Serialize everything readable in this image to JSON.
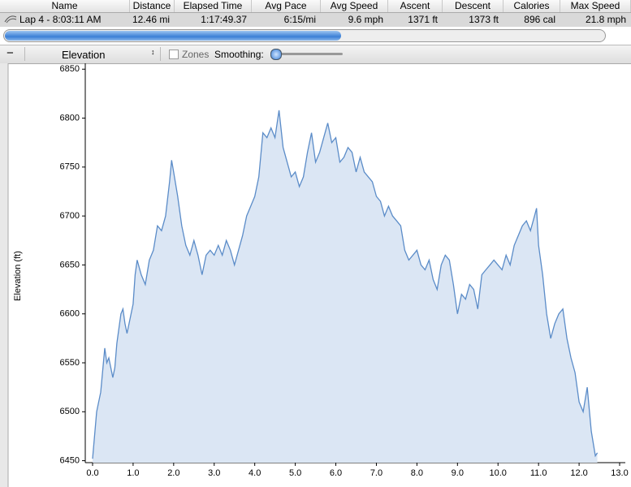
{
  "table": {
    "columns": [
      "Name",
      "Distance",
      "Elapsed Time",
      "Avg Pace",
      "Avg Speed",
      "Ascent",
      "Descent",
      "Calories",
      "Max Speed"
    ],
    "row": [
      "Lap 4 - 8:03:11 AM",
      "12.46 mi",
      "1:17:49.37",
      "6:15/mi",
      "9.6 mph",
      "1371 ft",
      "1373 ft",
      "896 cal",
      "21.8 mph"
    ]
  },
  "toolbar": {
    "view": "Elevation",
    "zones": "Zones",
    "smoothing": "Smoothing:"
  },
  "chart_data": {
    "type": "area",
    "ylabel": "Elevation (ft)",
    "color": "#5b8cc8",
    "fill": "#dbe6f4",
    "xlim": [
      -0.18,
      13.14
    ],
    "ylim": [
      6448,
      6856
    ],
    "xticks": [
      {
        "value": 0,
        "label": "0.0"
      },
      {
        "value": 1,
        "label": "1.0"
      },
      {
        "value": 2,
        "label": "2.0"
      },
      {
        "value": 3,
        "label": "3.0"
      },
      {
        "value": 4,
        "label": "4.0"
      },
      {
        "value": 5,
        "label": "5.0"
      },
      {
        "value": 6,
        "label": "6.0"
      },
      {
        "value": 7,
        "label": "7.0"
      },
      {
        "value": 8,
        "label": "8.0"
      },
      {
        "value": 9,
        "label": "9.0"
      },
      {
        "value": 10,
        "label": "10.0"
      },
      {
        "value": 11,
        "label": "11.0"
      },
      {
        "value": 12,
        "label": "12.0"
      },
      {
        "value": 13,
        "label": "13.0"
      }
    ],
    "yticks": [
      6450,
      6500,
      6550,
      6600,
      6650,
      6700,
      6750,
      6800,
      6850
    ],
    "x": [
      0,
      0.1,
      0.2,
      0.3,
      0.35,
      0.4,
      0.5,
      0.55,
      0.6,
      0.7,
      0.75,
      0.8,
      0.85,
      0.9,
      1,
      1.05,
      1.1,
      1.2,
      1.3,
      1.4,
      1.5,
      1.6,
      1.7,
      1.8,
      1.9,
      1.95,
      2,
      2.1,
      2.2,
      2.3,
      2.4,
      2.5,
      2.6,
      2.7,
      2.8,
      2.9,
      3,
      3.1,
      3.2,
      3.3,
      3.4,
      3.5,
      3.6,
      3.7,
      3.8,
      3.9,
      4,
      4.1,
      4.2,
      4.3,
      4.4,
      4.5,
      4.6,
      4.7,
      4.8,
      4.9,
      5,
      5.1,
      5.2,
      5.3,
      5.4,
      5.5,
      5.6,
      5.7,
      5.8,
      5.9,
      6,
      6.1,
      6.2,
      6.3,
      6.4,
      6.5,
      6.6,
      6.7,
      6.8,
      6.9,
      7,
      7.1,
      7.2,
      7.3,
      7.4,
      7.5,
      7.6,
      7.7,
      7.8,
      7.9,
      8,
      8.1,
      8.2,
      8.3,
      8.4,
      8.5,
      8.6,
      8.7,
      8.8,
      8.9,
      9,
      9.1,
      9.2,
      9.3,
      9.4,
      9.5,
      9.6,
      9.7,
      9.8,
      9.9,
      10,
      10.1,
      10.2,
      10.3,
      10.4,
      10.5,
      10.6,
      10.7,
      10.8,
      10.9,
      10.95,
      11,
      11.1,
      11.2,
      11.3,
      11.4,
      11.5,
      11.6,
      11.7,
      11.8,
      11.9,
      12,
      12.1,
      12.2,
      12.3,
      12.4,
      12.45
    ],
    "values": [
      6452,
      6500,
      6520,
      6565,
      6550,
      6555,
      6535,
      6545,
      6570,
      6600,
      6605,
      6590,
      6580,
      6590,
      6610,
      6640,
      6655,
      6640,
      6630,
      6655,
      6665,
      6690,
      6685,
      6700,
      6735,
      6757,
      6745,
      6720,
      6690,
      6670,
      6660,
      6675,
      6660,
      6640,
      6660,
      6665,
      6660,
      6670,
      6660,
      6675,
      6665,
      6650,
      6665,
      6680,
      6700,
      6710,
      6720,
      6740,
      6785,
      6780,
      6790,
      6780,
      6808,
      6770,
      6755,
      6740,
      6745,
      6730,
      6740,
      6765,
      6785,
      6755,
      6765,
      6780,
      6795,
      6775,
      6780,
      6755,
      6760,
      6770,
      6765,
      6745,
      6760,
      6745,
      6740,
      6735,
      6720,
      6715,
      6700,
      6710,
      6700,
      6695,
      6690,
      6665,
      6655,
      6660,
      6665,
      6650,
      6645,
      6655,
      6635,
      6625,
      6650,
      6660,
      6655,
      6630,
      6600,
      6620,
      6615,
      6630,
      6625,
      6605,
      6640,
      6645,
      6650,
      6655,
      6650,
      6645,
      6660,
      6650,
      6670,
      6680,
      6690,
      6695,
      6685,
      6700,
      6708,
      6670,
      6640,
      6600,
      6575,
      6590,
      6600,
      6605,
      6575,
      6555,
      6540,
      6510,
      6500,
      6525,
      6480,
      6455,
      6458
    ]
  }
}
